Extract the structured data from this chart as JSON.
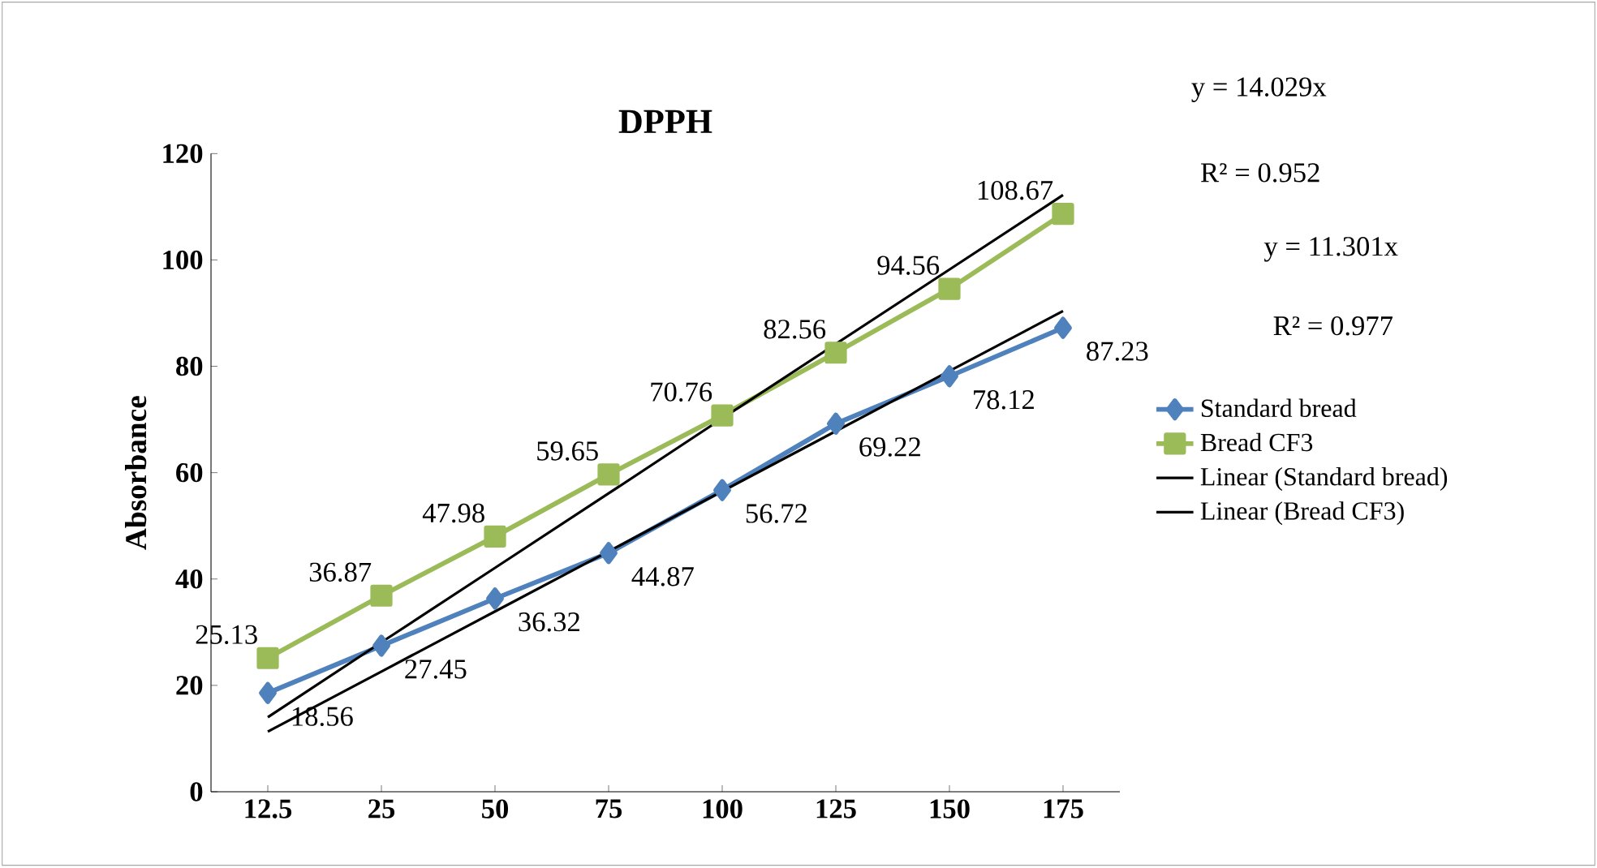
{
  "chart_data": {
    "type": "line",
    "title": "DPPH",
    "ylabel": "Absorbance",
    "categories": [
      "12.5",
      "25",
      "50",
      "75",
      "100",
      "125",
      "150",
      "175"
    ],
    "series": [
      {
        "name": "Standard bread",
        "color": "#4f81bd",
        "marker": "diamond",
        "data_labels": true,
        "values": [
          18.56,
          27.45,
          36.32,
          44.87,
          56.72,
          69.22,
          78.12,
          87.23
        ]
      },
      {
        "name": "Bread CF3",
        "color": "#9bbb59",
        "marker": "square",
        "data_labels": true,
        "values": [
          25.13,
          36.87,
          47.98,
          59.65,
          70.76,
          82.56,
          94.56,
          108.67
        ]
      },
      {
        "name": "Linear (Standard bread)",
        "color": "#000000",
        "marker": "none",
        "values": [
          11.3,
          22.6,
          33.9,
          45.2,
          56.5,
          67.8,
          79.1,
          90.4
        ]
      },
      {
        "name": "Linear (Bread CF3)",
        "color": "#000000",
        "marker": "none",
        "values": [
          14,
          28.1,
          42.1,
          56.1,
          70.2,
          84.2,
          98.2,
          112.2
        ]
      }
    ],
    "ylim": [
      0,
      120
    ],
    "yticks": [
      0,
      20,
      40,
      60,
      80,
      100,
      120
    ],
    "grid": false,
    "legend": "right",
    "annotations": [
      "y = 14.029x",
      "R² = 0.952",
      "y = 11.301x",
      "R² = 0.977"
    ]
  }
}
